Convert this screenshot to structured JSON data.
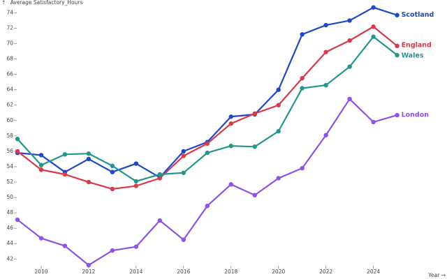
{
  "chart_data": {
    "type": "line",
    "ylabel": "Average Satisfactory_Hours",
    "xlabel": "Year",
    "y_axis_marker": "↑",
    "x_axis_marker": "→",
    "xlim": [
      2009,
      2026
    ],
    "ylim": [
      41.5,
      75
    ],
    "x_ticks": [
      2010,
      2012,
      2014,
      2016,
      2018,
      2020,
      2022,
      2024
    ],
    "y_ticks": [
      42,
      44,
      46,
      48,
      50,
      52,
      54,
      56,
      58,
      60,
      62,
      64,
      66,
      68,
      70,
      72,
      74
    ],
    "grid": false,
    "legend": "inline labels at line ends",
    "x": [
      2009,
      2010,
      2011,
      2012,
      2013,
      2014,
      2015,
      2016,
      2017,
      2018,
      2019,
      2020,
      2021,
      2022,
      2023,
      2024,
      2025
    ],
    "series": [
      {
        "name": "Scotland",
        "color": "#1f47c8",
        "values": [
          55.8,
          55.5,
          53.3,
          55.0,
          53.3,
          54.4,
          52.6,
          56.0,
          57.2,
          60.5,
          60.8,
          64.0,
          71.2,
          72.4,
          73.0,
          74.7,
          73.7
        ]
      },
      {
        "name": "England",
        "color": "#d93a49",
        "values": [
          56.0,
          53.6,
          53.0,
          52.0,
          51.1,
          51.5,
          52.5,
          55.4,
          57.0,
          59.6,
          60.9,
          62.0,
          65.5,
          68.9,
          70.4,
          72.2,
          69.7
        ]
      },
      {
        "name": "Wales",
        "color": "#23978a",
        "values": [
          57.6,
          54.2,
          55.6,
          55.7,
          54.1,
          52.1,
          53.0,
          53.2,
          55.8,
          56.7,
          56.6,
          58.6,
          64.2,
          64.6,
          67.0,
          70.9,
          68.5
        ]
      },
      {
        "name": "London",
        "color": "#8d52e6",
        "values": [
          47.1,
          44.7,
          43.7,
          41.2,
          43.1,
          43.6,
          47.0,
          44.5,
          48.9,
          51.7,
          50.3,
          52.5,
          53.8,
          58.1,
          62.8,
          59.8,
          60.7
        ]
      }
    ]
  }
}
